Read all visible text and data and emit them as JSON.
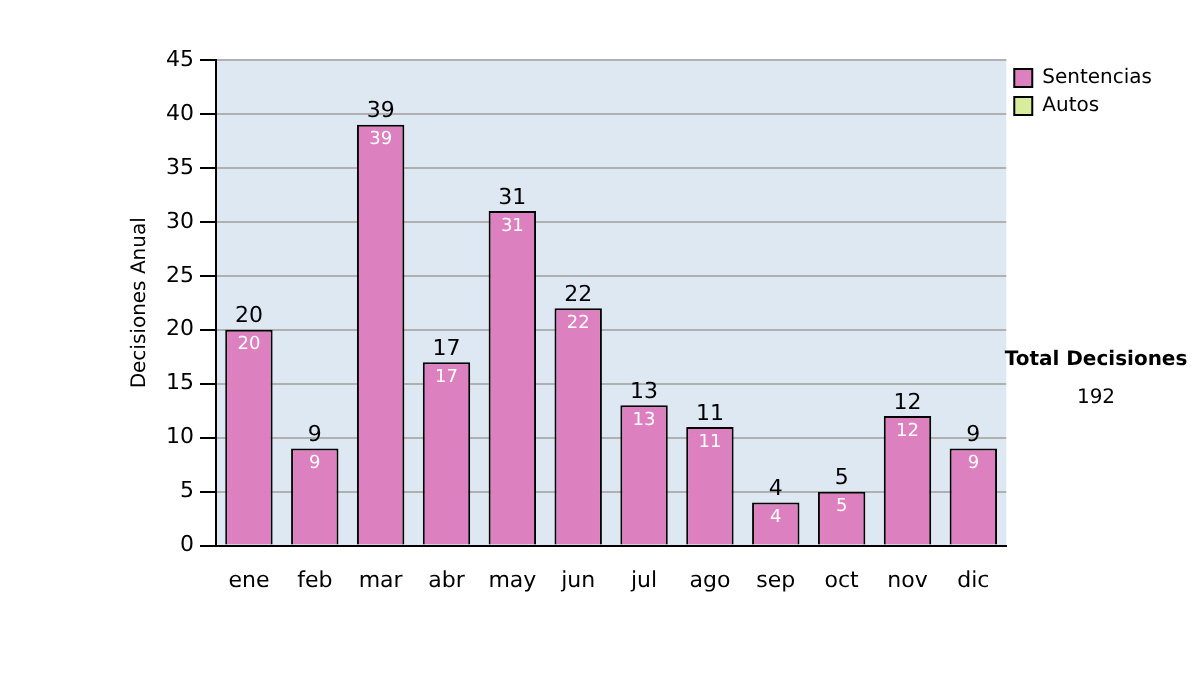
{
  "chart_data": {
    "type": "bar",
    "stacked": true,
    "ylabel": "Decisiones Anual",
    "categories": [
      "ene",
      "feb",
      "mar",
      "abr",
      "may",
      "jun",
      "jul",
      "ago",
      "sep",
      "oct",
      "nov",
      "dic"
    ],
    "series": [
      {
        "name": "Sentencias",
        "color": "#dd80c0",
        "values": [
          20,
          9,
          39,
          17,
          31,
          22,
          13,
          11,
          4,
          5,
          12,
          9
        ],
        "value_labels": [
          "20",
          "9",
          "39",
          "17",
          "31",
          "22",
          "13",
          "11",
          "4",
          "5",
          "12",
          "9"
        ]
      },
      {
        "name": "Autos",
        "color": "#d8ec9c",
        "values": [
          0,
          0,
          0,
          0,
          0,
          0,
          0,
          0,
          0,
          0,
          0,
          0
        ]
      }
    ],
    "totals": [
      "20",
      "9",
      "39",
      "17",
      "31",
      "22",
      "13",
      "11",
      "4",
      "5",
      "12",
      "9"
    ],
    "ylim": [
      0,
      45
    ],
    "yticks": [
      0,
      5,
      10,
      15,
      20,
      25,
      30,
      35,
      40,
      45
    ],
    "grid": "y",
    "legend": "right",
    "annotations": [
      "Total Decisiones",
      "192"
    ]
  }
}
